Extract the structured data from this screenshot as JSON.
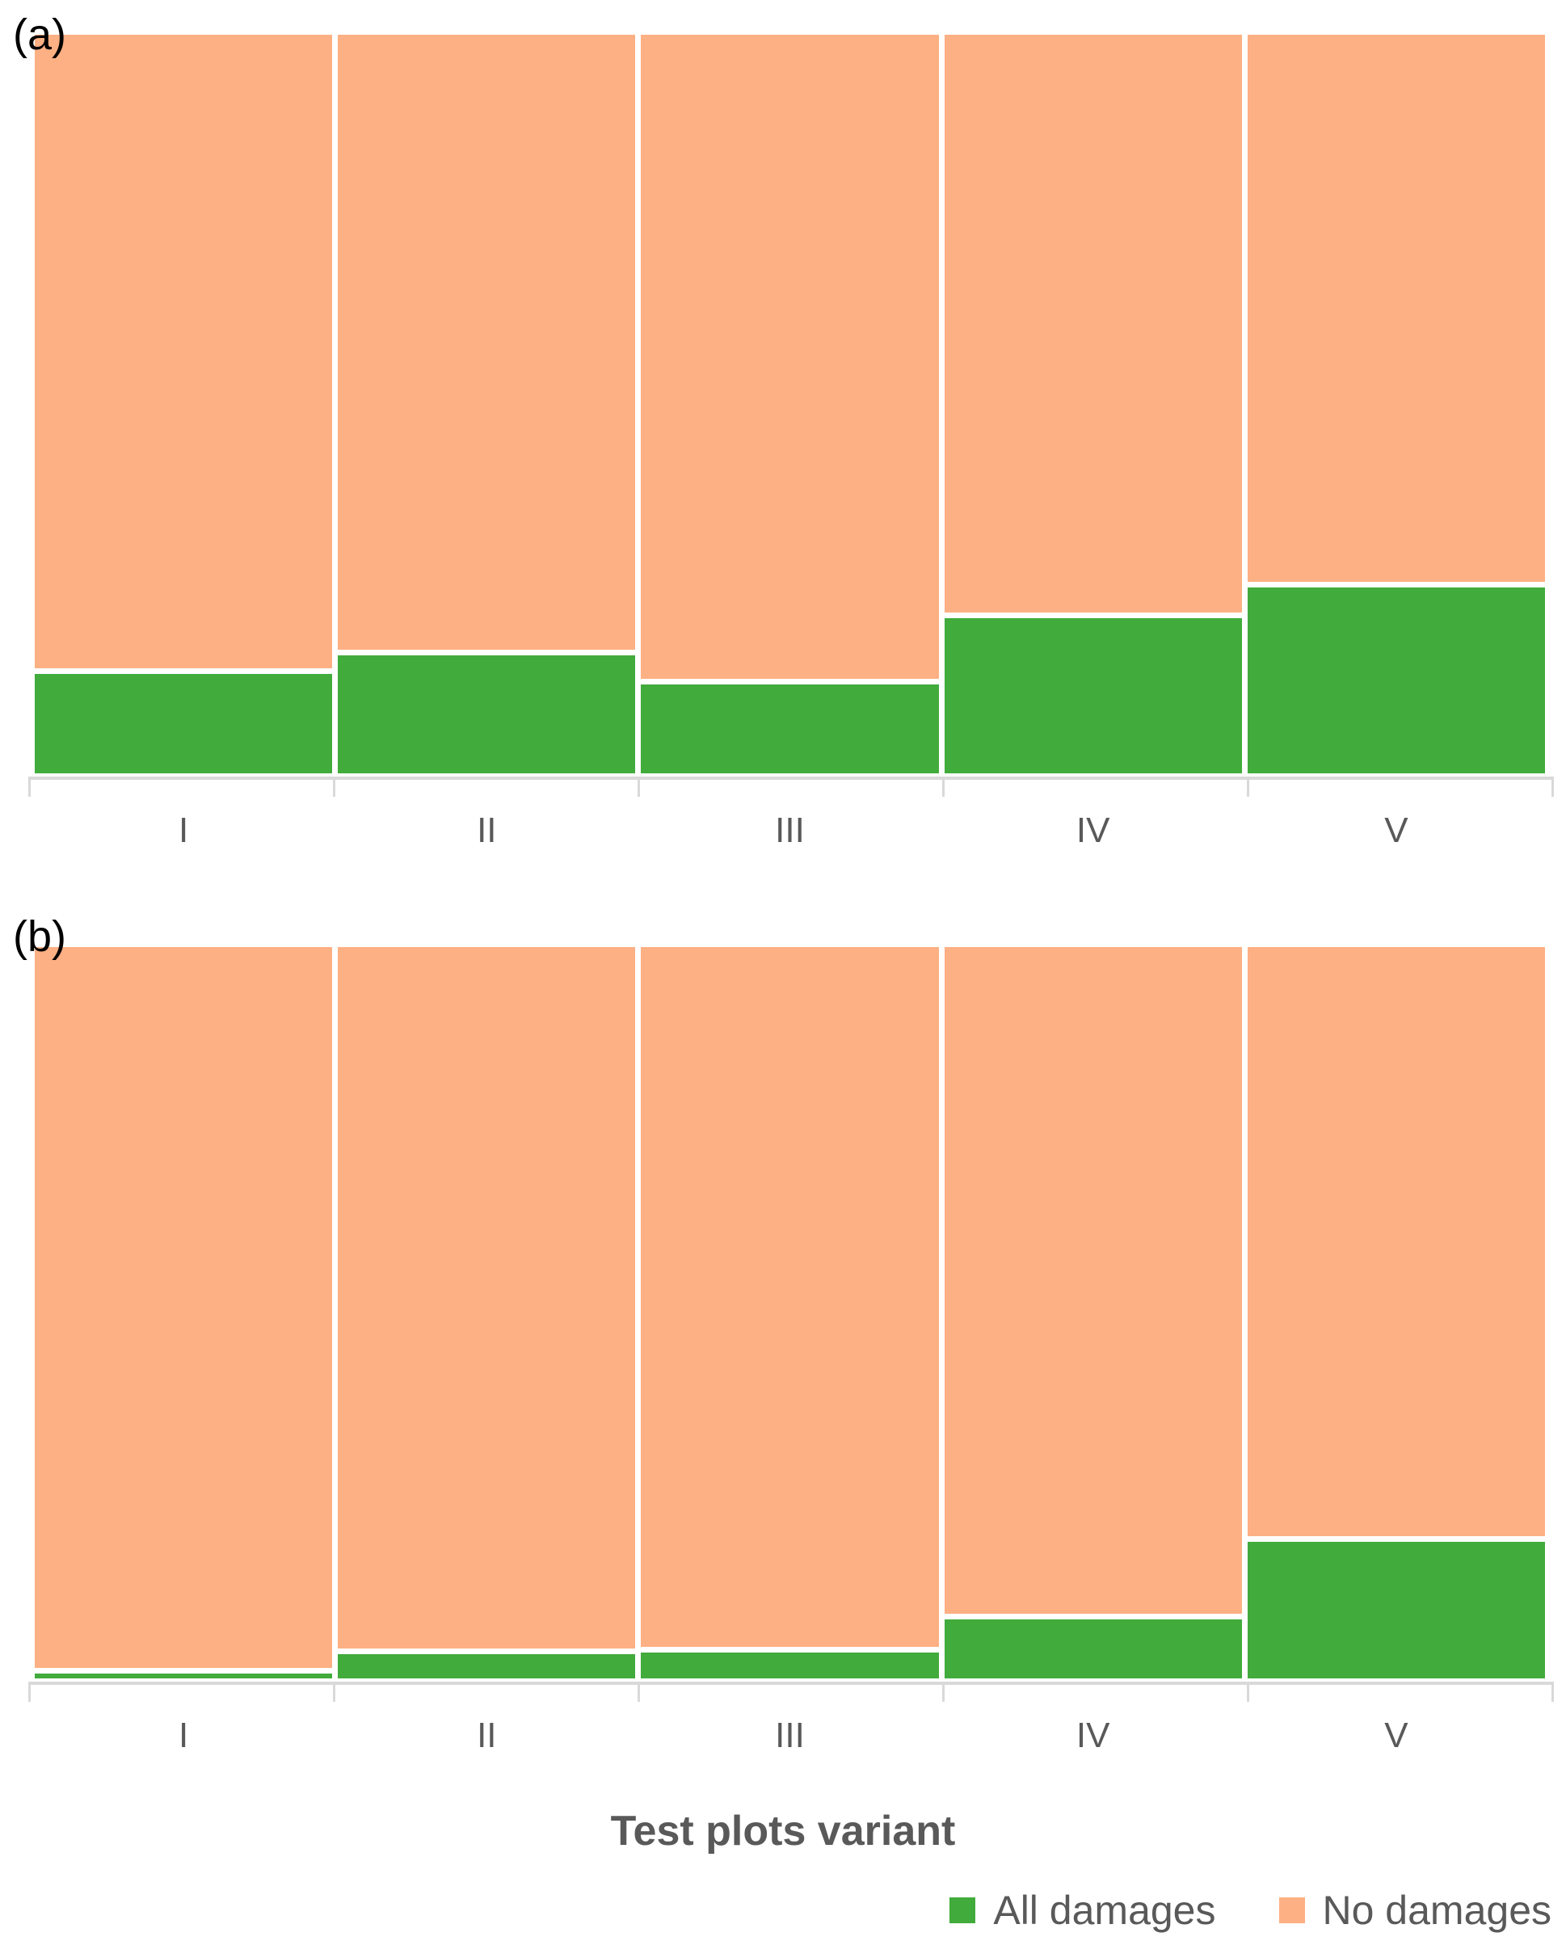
{
  "xlabel": "Test plots variant",
  "legend": {
    "position": "bottom-right",
    "items": [
      {
        "label": "All damages",
        "color": "#41ab3c"
      },
      {
        "label": "No damages",
        "color": "#fdb083"
      }
    ]
  },
  "colors": {
    "all_damages_green": "#41ab3c",
    "no_damages_orange": "#fdb083",
    "axis_gray": "#d9d9d9",
    "label_gray": "#595959",
    "panel_label_black": "#000000"
  },
  "chart_data": [
    {
      "type": "bar",
      "subtype": "stacked-100-percent",
      "panel_label": "(a)",
      "categories": [
        "I",
        "II",
        "III",
        "IV",
        "V"
      ],
      "series": [
        {
          "name": "All damages",
          "color": "#41ab3c",
          "values_pct": [
            13.5,
            16.0,
            12.0,
            21.0,
            25.2
          ]
        },
        {
          "name": "No damages",
          "color": "#fdb083",
          "values_pct": [
            86.5,
            84.0,
            88.0,
            79.0,
            74.8
          ]
        }
      ],
      "ylim": [
        0,
        100
      ],
      "grid": false,
      "y_axis_shown": false
    },
    {
      "type": "bar",
      "subtype": "stacked-100-percent",
      "panel_label": "(b)",
      "categories": [
        "I",
        "II",
        "III",
        "IV",
        "V"
      ],
      "series": [
        {
          "name": "All damages",
          "color": "#41ab3c",
          "values_pct": [
            0.7,
            3.3,
            3.5,
            8.1,
            18.7
          ]
        },
        {
          "name": "No damages",
          "color": "#fdb083",
          "values_pct": [
            99.3,
            96.7,
            96.5,
            91.9,
            81.3
          ]
        }
      ],
      "ylim": [
        0,
        100
      ],
      "grid": false,
      "y_axis_shown": false
    }
  ]
}
